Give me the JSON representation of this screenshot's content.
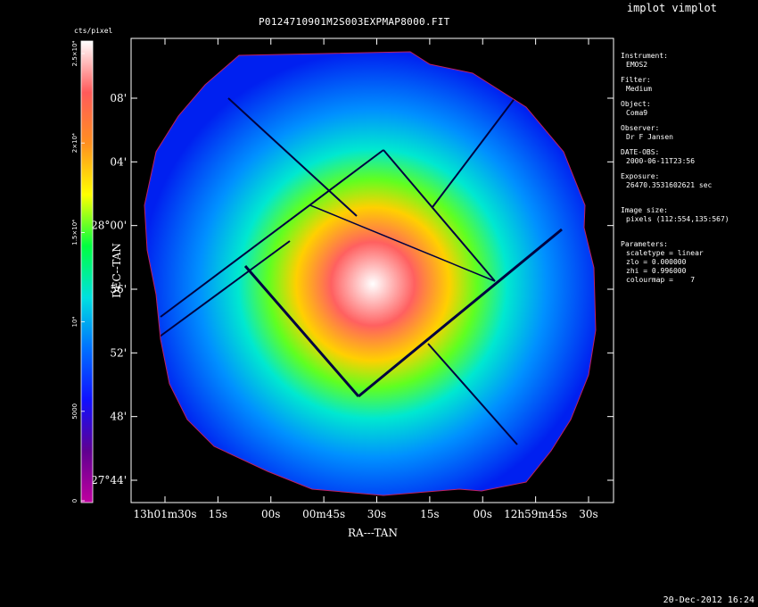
{
  "app": {
    "title": "implot vimplot"
  },
  "plot": {
    "title": "P0124710901M2S003EXPMAP8000.FIT",
    "x_axis_label": "RA---TAN",
    "y_axis_label": "DEC--TAN",
    "x_ticks": [
      {
        "label": "13h01m30s"
      },
      {
        "label": "15s"
      },
      {
        "label": "00s"
      },
      {
        "label": "00m45s"
      },
      {
        "label": "30s"
      },
      {
        "label": "15s"
      },
      {
        "label": "00s"
      },
      {
        "label": "12h59m45s"
      },
      {
        "label": "30s"
      }
    ],
    "y_ticks": [
      {
        "label": "08'"
      },
      {
        "label": "04'"
      },
      {
        "label": "28°00'"
      },
      {
        "label": "56'"
      },
      {
        "label": "52'"
      },
      {
        "label": "48'"
      },
      {
        "label": "27°44'"
      }
    ]
  },
  "colorbar": {
    "unit": "cts/pixel",
    "ticks": [
      "2.5×10⁴",
      "2×10⁴",
      "1.5×10⁴",
      "10⁴",
      "5000",
      "0"
    ],
    "colormap": [
      "#ffffff",
      "#ff5a5a",
      "#ff9020",
      "#ffff00",
      "#00ff40",
      "#00e0e0",
      "#0070ff",
      "#1010ff",
      "#600090",
      "#c000a0"
    ]
  },
  "info": [
    {
      "label": "Instrument:",
      "value": "EMOS2"
    },
    {
      "label": "Filter:",
      "value": "Medium"
    },
    {
      "label": "Object:",
      "value": "Coma9"
    },
    {
      "label": "Observer:",
      "value": "Dr F Jansen"
    },
    {
      "label": "DATE-OBS:",
      "value": "2000-06-11T23:56"
    },
    {
      "label": "Exposure:",
      "value": "26470.3531602621 sec"
    },
    {
      "label": "Image size:",
      "value": "pixels (112:554,135:567)"
    }
  ],
  "parameters": {
    "label": "Parameters:",
    "lines": [
      "scaletype = linear",
      "zlo = 0.000000",
      "zhi = 0.996000",
      "colourmap =    7"
    ]
  },
  "footer": {
    "timestamp": "20-Dec-2012 16:24"
  }
}
